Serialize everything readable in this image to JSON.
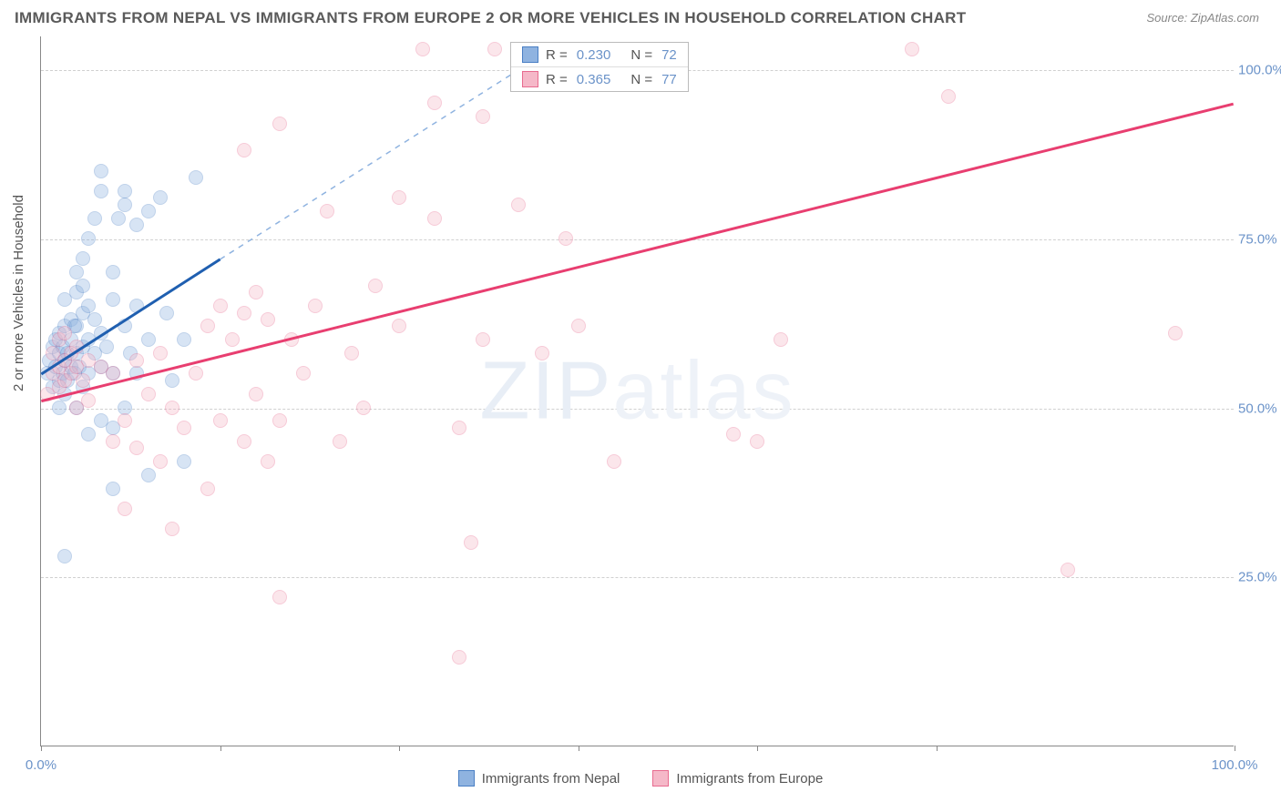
{
  "title": "IMMIGRANTS FROM NEPAL VS IMMIGRANTS FROM EUROPE 2 OR MORE VEHICLES IN HOUSEHOLD CORRELATION CHART",
  "source": "Source: ZipAtlas.com",
  "y_axis_title": "2 or more Vehicles in Household",
  "watermark_main": "ZIP",
  "watermark_sub": "atlas",
  "chart": {
    "type": "scatter",
    "xlim": [
      0,
      100
    ],
    "ylim": [
      0,
      105
    ],
    "x_ticks": [
      0,
      15,
      30,
      45,
      60,
      75,
      100
    ],
    "x_tick_labels": {
      "0": "0.0%",
      "100": "100.0%"
    },
    "y_ticks": [
      25,
      50,
      75,
      100
    ],
    "y_tick_labels": {
      "25": "25.0%",
      "50": "50.0%",
      "75": "75.0%",
      "100": "100.0%"
    },
    "background_color": "#ffffff",
    "grid_color": "#d0d0d0",
    "axis_color": "#888888",
    "tick_label_color": "#6b93c9",
    "marker_radius": 8,
    "marker_opacity": 0.35,
    "series": [
      {
        "name": "Immigrants from Nepal",
        "fill": "#8fb3e0",
        "stroke": "#4a7fc4",
        "line_color": "#1f5fb0",
        "dash_color": "#8fb3e0",
        "R": "0.230",
        "N": "72",
        "trend_solid": {
          "x1": 0,
          "y1": 55,
          "x2": 15,
          "y2": 72
        },
        "trend_dashed": {
          "x1": 15,
          "y1": 72,
          "x2": 40,
          "y2": 100
        },
        "points": [
          [
            0.5,
            55
          ],
          [
            0.7,
            57
          ],
          [
            1,
            59
          ],
          [
            1,
            53
          ],
          [
            1.2,
            56
          ],
          [
            1.2,
            60
          ],
          [
            1.5,
            54
          ],
          [
            1.5,
            58
          ],
          [
            1.5,
            61
          ],
          [
            1.8,
            55
          ],
          [
            1.8,
            59
          ],
          [
            2,
            52
          ],
          [
            2,
            57
          ],
          [
            2,
            62
          ],
          [
            2,
            66
          ],
          [
            2.2,
            54
          ],
          [
            2.2,
            58
          ],
          [
            2.5,
            56
          ],
          [
            2.5,
            60
          ],
          [
            2.5,
            63
          ],
          [
            2.8,
            55
          ],
          [
            3,
            50
          ],
          [
            3,
            58
          ],
          [
            3,
            62
          ],
          [
            3,
            67
          ],
          [
            3,
            70
          ],
          [
            3.2,
            56
          ],
          [
            3.5,
            53
          ],
          [
            3.5,
            59
          ],
          [
            3.5,
            64
          ],
          [
            3.5,
            68
          ],
          [
            3.5,
            72
          ],
          [
            4,
            46
          ],
          [
            4,
            55
          ],
          [
            4,
            60
          ],
          [
            4,
            65
          ],
          [
            4,
            75
          ],
          [
            4.5,
            58
          ],
          [
            4.5,
            63
          ],
          [
            4.5,
            78
          ],
          [
            5,
            48
          ],
          [
            5,
            56
          ],
          [
            5,
            61
          ],
          [
            5,
            82
          ],
          [
            5,
            85
          ],
          [
            5.5,
            59
          ],
          [
            6,
            38
          ],
          [
            6,
            55
          ],
          [
            6,
            66
          ],
          [
            6,
            70
          ],
          [
            6.5,
            78
          ],
          [
            7,
            50
          ],
          [
            7,
            62
          ],
          [
            7,
            80
          ],
          [
            7,
            82
          ],
          [
            7.5,
            58
          ],
          [
            8,
            55
          ],
          [
            8,
            65
          ],
          [
            8,
            77
          ],
          [
            9,
            40
          ],
          [
            9,
            60
          ],
          [
            9,
            79
          ],
          [
            10,
            81
          ],
          [
            10.5,
            64
          ],
          [
            11,
            54
          ],
          [
            12,
            60
          ],
          [
            12,
            42
          ],
          [
            13,
            84
          ],
          [
            2,
            28
          ],
          [
            6,
            47
          ],
          [
            1.5,
            50
          ],
          [
            2.8,
            62
          ]
        ]
      },
      {
        "name": "Immigrants from Europe",
        "fill": "#f5b8c8",
        "stroke": "#e86b8f",
        "line_color": "#e83e70",
        "R": "0.365",
        "N": "77",
        "trend_solid": {
          "x1": 0,
          "y1": 51,
          "x2": 100,
          "y2": 95
        },
        "points": [
          [
            0.5,
            52
          ],
          [
            1,
            55
          ],
          [
            1,
            58
          ],
          [
            1.5,
            53
          ],
          [
            1.5,
            56
          ],
          [
            1.5,
            60
          ],
          [
            2,
            54
          ],
          [
            2,
            57
          ],
          [
            2,
            61
          ],
          [
            2.5,
            55
          ],
          [
            2.5,
            58
          ],
          [
            3,
            50
          ],
          [
            3,
            56
          ],
          [
            3,
            59
          ],
          [
            3.5,
            54
          ],
          [
            4,
            51
          ],
          [
            4,
            57
          ],
          [
            5,
            56
          ],
          [
            6,
            45
          ],
          [
            6,
            55
          ],
          [
            7,
            35
          ],
          [
            7,
            48
          ],
          [
            8,
            44
          ],
          [
            8,
            57
          ],
          [
            9,
            52
          ],
          [
            10,
            42
          ],
          [
            10,
            58
          ],
          [
            11,
            32
          ],
          [
            11,
            50
          ],
          [
            12,
            47
          ],
          [
            13,
            55
          ],
          [
            14,
            62
          ],
          [
            14,
            38
          ],
          [
            15,
            65
          ],
          [
            15,
            48
          ],
          [
            16,
            60
          ],
          [
            17,
            45
          ],
          [
            17,
            64
          ],
          [
            17,
            88
          ],
          [
            18,
            67
          ],
          [
            18,
            52
          ],
          [
            19,
            42
          ],
          [
            19,
            63
          ],
          [
            20,
            22
          ],
          [
            20,
            48
          ],
          [
            20,
            92
          ],
          [
            21,
            60
          ],
          [
            22,
            55
          ],
          [
            23,
            65
          ],
          [
            24,
            79
          ],
          [
            25,
            45
          ],
          [
            26,
            58
          ],
          [
            27,
            50
          ],
          [
            28,
            68
          ],
          [
            30,
            62
          ],
          [
            30,
            81
          ],
          [
            32,
            103
          ],
          [
            33,
            78
          ],
          [
            33,
            95
          ],
          [
            35,
            13
          ],
          [
            35,
            47
          ],
          [
            36,
            30
          ],
          [
            37,
            60
          ],
          [
            37,
            93
          ],
          [
            38,
            103
          ],
          [
            40,
            80
          ],
          [
            42,
            58
          ],
          [
            44,
            75
          ],
          [
            45,
            62
          ],
          [
            48,
            42
          ],
          [
            58,
            46
          ],
          [
            60,
            45
          ],
          [
            62,
            60
          ],
          [
            73,
            103
          ],
          [
            76,
            96
          ],
          [
            86,
            26
          ],
          [
            95,
            61
          ]
        ]
      }
    ]
  },
  "bottom_legend": [
    {
      "label": "Immigrants from Nepal",
      "fill": "#8fb3e0",
      "stroke": "#4a7fc4"
    },
    {
      "label": "Immigrants from Europe",
      "fill": "#f5b8c8",
      "stroke": "#e86b8f"
    }
  ]
}
